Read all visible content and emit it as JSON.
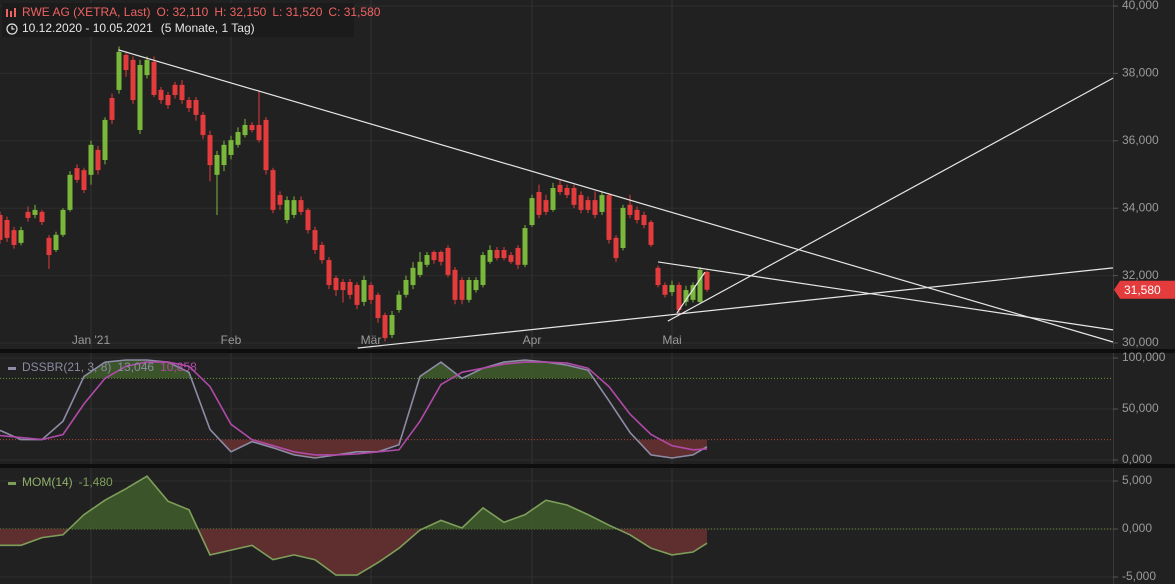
{
  "chart_data": [
    {
      "type": "candlestick",
      "title": "RWE AG (XETRA, Last)",
      "ohlc_labels": [
        "O: 32,110",
        "H: 32,150",
        "L: 31,520",
        "C: 31,580"
      ],
      "period": "10.12.2020 - 10.05.2021",
      "period_note": "(5 Monate, 1 Tag)",
      "categories": [
        null,
        null,
        null,
        null,
        null,
        null,
        null,
        null,
        null,
        null,
        null,
        null,
        null,
        "Jan '21",
        null,
        null,
        null,
        null,
        null,
        null,
        null,
        null,
        null,
        null,
        null,
        null,
        null,
        null,
        null,
        null,
        null,
        null,
        null,
        "Feb",
        null,
        null,
        null,
        null,
        null,
        null,
        null,
        null,
        null,
        null,
        null,
        null,
        null,
        null,
        null,
        null,
        null,
        null,
        null,
        "Mär",
        null,
        null,
        null,
        null,
        null,
        null,
        null,
        null,
        null,
        null,
        null,
        null,
        null,
        null,
        null,
        null,
        null,
        null,
        null,
        null,
        null,
        null,
        "Apr",
        null,
        null,
        null,
        null,
        null,
        null,
        null,
        null,
        null,
        null,
        null,
        null,
        null,
        null,
        null,
        null,
        null,
        null,
        null,
        "Mai",
        null,
        null,
        null,
        null,
        null
      ],
      "open": [
        33800,
        33650,
        33350,
        32970,
        33890,
        33800,
        33890,
        33120,
        32760,
        33210,
        33950,
        35190,
        35130,
        34990,
        35730,
        35430,
        37270,
        37510,
        38550,
        38400,
        36320,
        37950,
        38340,
        37510,
        37360,
        37660,
        37660,
        37210,
        37210,
        36770,
        36170,
        34990,
        35280,
        35580,
        35880,
        36170,
        36470,
        36470,
        36620,
        35130,
        34390,
        33650,
        33800,
        34240,
        33950,
        33350,
        32910,
        32460,
        31930,
        31810,
        31810,
        31720,
        31220,
        31720,
        31430,
        30830,
        30240,
        30980,
        31430,
        31720,
        32020,
        32320,
        32700,
        32700,
        32820,
        32170,
        31870,
        31280,
        31570,
        31720,
        32410,
        32760,
        32760,
        32610,
        32820,
        32320,
        33500,
        34480,
        34240,
        33950,
        34690,
        34600,
        34600,
        34390,
        34240,
        34240,
        33890,
        34390,
        33120,
        32820,
        34100,
        33950,
        33800,
        33590,
        32230,
        31720,
        31510,
        31720,
        31220,
        31280,
        31220,
        32110
      ],
      "high": [
        33900,
        33750,
        33450,
        33450,
        34050,
        34100,
        33950,
        33200,
        33300,
        34000,
        35100,
        35300,
        35200,
        36000,
        35850,
        36700,
        37400,
        38800,
        38650,
        38500,
        38400,
        38500,
        38500,
        37600,
        37450,
        37750,
        37800,
        37300,
        37300,
        36850,
        36300,
        35700,
        36000,
        36150,
        36400,
        36650,
        36550,
        37500,
        36700,
        35200,
        34500,
        34350,
        34350,
        34350,
        34000,
        33450,
        33000,
        32550,
        32000,
        31900,
        31900,
        31800,
        32000,
        31800,
        31500,
        30900,
        30950,
        31550,
        32000,
        32400,
        32700,
        32700,
        32750,
        32750,
        32900,
        32250,
        31950,
        31950,
        31950,
        32700,
        32900,
        32850,
        32850,
        32700,
        32900,
        33500,
        34400,
        34700,
        34400,
        34750,
        34850,
        34700,
        34700,
        34500,
        34350,
        34500,
        34500,
        34450,
        33200,
        34100,
        34400,
        34050,
        33900,
        33650,
        32300,
        31800,
        31850,
        31800,
        31700,
        31800,
        32250,
        32150
      ],
      "low": [
        32950,
        33000,
        32800,
        32900,
        33600,
        33700,
        33500,
        32200,
        32700,
        33150,
        33900,
        34750,
        34450,
        34700,
        35000,
        35300,
        36500,
        37400,
        37900,
        37100,
        36200,
        37850,
        37300,
        37100,
        36950,
        37250,
        37100,
        36850,
        36600,
        36050,
        34800,
        33800,
        35100,
        35450,
        35800,
        36100,
        36250,
        35950,
        35000,
        33850,
        33950,
        33550,
        33700,
        33800,
        33250,
        32650,
        32350,
        31600,
        31400,
        31200,
        31300,
        31000,
        31100,
        31150,
        30600,
        30050,
        30150,
        30900,
        31350,
        31600,
        31950,
        32250,
        32350,
        32300,
        31950,
        31150,
        31150,
        31200,
        31500,
        31650,
        32350,
        32450,
        32450,
        32350,
        32200,
        32250,
        33450,
        33700,
        33800,
        33900,
        34400,
        34300,
        34000,
        33850,
        33850,
        33700,
        33800,
        32950,
        32400,
        32750,
        33700,
        33550,
        33400,
        32850,
        31650,
        31350,
        31400,
        30850,
        31100,
        31200,
        31150,
        31520
      ],
      "close": [
        33060,
        33120,
        32910,
        33350,
        33710,
        33950,
        33590,
        32610,
        33210,
        33950,
        34990,
        34840,
        34540,
        35880,
        35130,
        36620,
        36620,
        38640,
        38100,
        37210,
        38250,
        38400,
        37360,
        37210,
        37060,
        37360,
        37210,
        36970,
        36770,
        36170,
        35280,
        35580,
        35880,
        36020,
        36260,
        36470,
        36320,
        36020,
        35130,
        33950,
        34100,
        34240,
        34240,
        33890,
        33350,
        32760,
        32460,
        31720,
        31570,
        31570,
        31430,
        31130,
        31870,
        31280,
        30740,
        30150,
        30830,
        31430,
        31870,
        32230,
        32410,
        32610,
        32460,
        32410,
        32020,
        31280,
        31280,
        31870,
        31870,
        32610,
        32760,
        32520,
        32520,
        32410,
        32320,
        33410,
        34300,
        33800,
        33890,
        34600,
        34480,
        34390,
        34100,
        33950,
        33950,
        33800,
        34390,
        33060,
        32520,
        34010,
        33800,
        33650,
        33500,
        32910,
        31720,
        31430,
        31720,
        30980,
        31570,
        31720,
        32170,
        31580
      ],
      "up_color": "#7ab83c",
      "down_color": "#e43c3c",
      "xlim": [
        0,
        159
      ],
      "ylim": [
        30000,
        40000
      ],
      "yticks": [
        {
          "value": 30000,
          "label": "30,000"
        },
        {
          "value": 32000,
          "label": "32,000"
        },
        {
          "value": 34000,
          "label": "34,000"
        },
        {
          "value": 36000,
          "label": "36,000"
        },
        {
          "value": 38000,
          "label": "38,000"
        },
        {
          "value": 40000,
          "label": "40,000"
        }
      ],
      "grid": true,
      "trendlines": [
        {
          "x": [
            16.9,
            159
          ],
          "y": [
            38700,
            30030
          ],
          "color": "#e6e6e6"
        },
        {
          "x": [
            94,
            159
          ],
          "y": [
            32405,
            30390
          ],
          "color": "#e6e6e6"
        },
        {
          "x": [
            51.1,
            159
          ],
          "y": [
            29850,
            32230
          ],
          "color": "#e6e6e6"
        },
        {
          "x": [
            95.4,
            159
          ],
          "y": [
            30650,
            37860
          ],
          "color": "#e6e6e6"
        },
        {
          "x": [
            96.7,
            100.7
          ],
          "y": [
            30890,
            32100
          ],
          "color": "#e6e6e6"
        }
      ],
      "last_price": {
        "value": 31580,
        "label": "31,580"
      }
    },
    {
      "type": "line",
      "title": "DSSBR(21, 3, 8)",
      "title_color": "#8a8aa0",
      "x": [
        0,
        3,
        6,
        9,
        12,
        15,
        18,
        21,
        24,
        27,
        30,
        33,
        36,
        39,
        42,
        45,
        48,
        51,
        54,
        57,
        60,
        63,
        66,
        69,
        72,
        75,
        78,
        81,
        84,
        87,
        90,
        93,
        96,
        99,
        101
      ],
      "series": [
        {
          "color": "#8c8ca6",
          "fill": true,
          "last_label": "13,046",
          "values": [
            29,
            20,
            20,
            38,
            82,
            96,
            98,
            98,
            96,
            86,
            30,
            8,
            18,
            12,
            5,
            2,
            5,
            8,
            8,
            15,
            82,
            96,
            80,
            90,
            96,
            98,
            96,
            93,
            88,
            58,
            27,
            5,
            2,
            5,
            13.046
          ]
        },
        {
          "color": "#b04aa8",
          "fill": false,
          "last_label": "10,858",
          "values": [
            24,
            22,
            20,
            25,
            55,
            80,
            92,
            96,
            96,
            92,
            72,
            35,
            20,
            14,
            8,
            5,
            5,
            6,
            8,
            10,
            38,
            74,
            86,
            90,
            94,
            96,
            96,
            95,
            90,
            72,
            45,
            25,
            14,
            10,
            10.858
          ]
        }
      ],
      "levels": [
        {
          "value": 80,
          "color": "#6f9a34",
          "above": "#3f5a2b"
        },
        {
          "value": 20,
          "color": "#b2493a",
          "below": "#653130"
        }
      ],
      "xlim": [
        0,
        159
      ],
      "ylim": [
        0,
        100
      ],
      "yticks": [
        {
          "value": 0,
          "label": "0,000"
        },
        {
          "value": 50,
          "label": "50,000"
        },
        {
          "value": 100,
          "label": "100,000"
        }
      ],
      "grid": true
    },
    {
      "type": "line",
      "title": "MOM(14)",
      "title_color": "#8fb06a",
      "x": [
        0,
        3,
        6,
        9,
        12,
        15,
        18,
        21,
        24,
        27,
        30,
        33,
        36,
        39,
        42,
        45,
        48,
        51,
        54,
        57,
        60,
        63,
        66,
        69,
        72,
        75,
        78,
        81,
        84,
        87,
        90,
        93,
        96,
        99,
        101
      ],
      "series": [
        {
          "color": "#7e9f5a",
          "fill": true,
          "last_label": "-1,480",
          "values": [
            -1.7,
            -1.7,
            -0.9,
            -0.6,
            1.5,
            3.0,
            4.2,
            5.5,
            2.9,
            2.0,
            -2.7,
            -2.2,
            -1.7,
            -3.2,
            -2.7,
            -3.2,
            -4.8,
            -4.8,
            -3.5,
            -2.0,
            -0.1,
            0.9,
            0.1,
            2.2,
            0.7,
            1.5,
            3.0,
            2.5,
            1.5,
            0.4,
            -0.6,
            -2.0,
            -2.7,
            -2.4,
            -1.48
          ]
        }
      ],
      "levels": [
        {
          "value": 0,
          "color": "#6f9a34",
          "above": "#3f5a2b",
          "below": "#653130"
        }
      ],
      "xlim": [
        0,
        159
      ],
      "ylim": [
        -5,
        5
      ],
      "yticks": [
        {
          "value": -5,
          "label": "-5,000"
        },
        {
          "value": 0,
          "label": "0,000"
        },
        {
          "value": 5,
          "label": "5,000"
        }
      ],
      "grid": true
    }
  ]
}
